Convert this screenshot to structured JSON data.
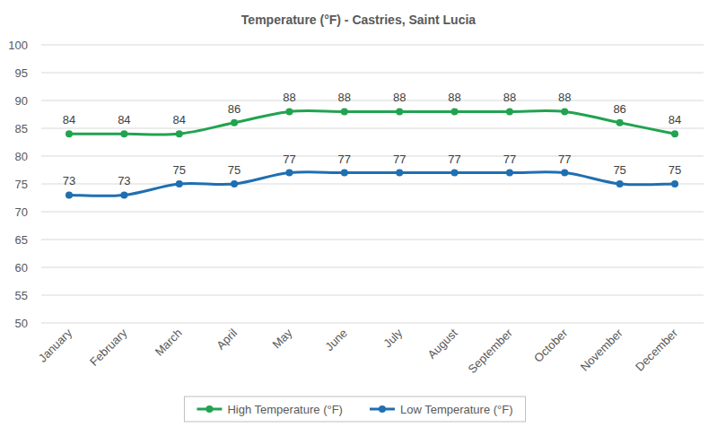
{
  "chart_data": {
    "type": "line",
    "title": "Temperature (°F) - Castries, Saint Lucia",
    "categories": [
      "January",
      "February",
      "March",
      "April",
      "May",
      "June",
      "July",
      "August",
      "September",
      "October",
      "November",
      "December"
    ],
    "series": [
      {
        "name": "High Temperature (°F)",
        "color": "#21a34f",
        "marker": "circle",
        "line_style": "smooth",
        "values": [
          84,
          84,
          84,
          86,
          88,
          88,
          88,
          88,
          88,
          88,
          86,
          84
        ]
      },
      {
        "name": "Low Temperature (°F)",
        "color": "#1f6fb1",
        "marker": "circle",
        "line_style": "smooth",
        "values": [
          73,
          73,
          75,
          75,
          77,
          77,
          77,
          77,
          77,
          77,
          75,
          75
        ]
      }
    ],
    "ylim": [
      50,
      100
    ],
    "yticks": [
      50,
      55,
      60,
      65,
      70,
      75,
      80,
      85,
      90,
      95,
      100
    ],
    "grid": true,
    "data_labels": true,
    "legend": "bottom"
  }
}
